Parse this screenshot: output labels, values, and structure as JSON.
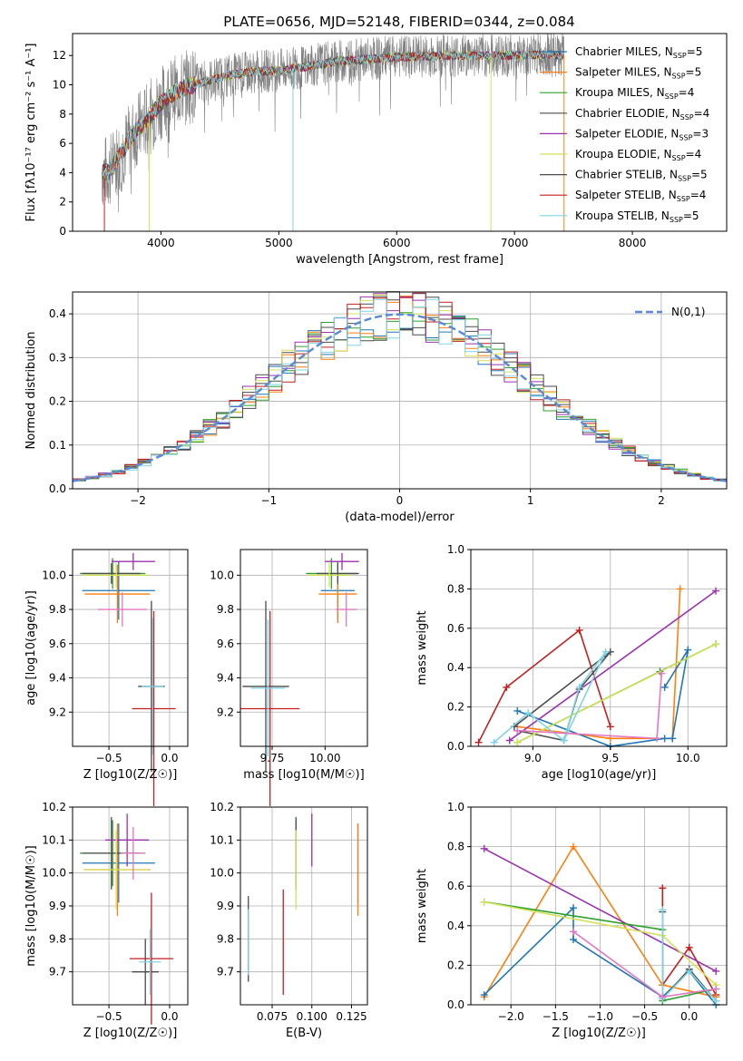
{
  "colors": {
    "chabrier_miles": "#1f77b4",
    "salpeter_miles": "#ff7f0e",
    "kroupa_miles": "#2ca02c",
    "chabrier_elodie": "#4d4d4d",
    "salpeter_elodie": "#9b30b0",
    "kroupa_elodie": "#d4e157",
    "chabrier_stelib": "#4a4a4a",
    "salpeter_stelib": "#c41e1e",
    "kroupa_stelib": "#7ed4e6",
    "normal": "#5b8bd6",
    "data": "#808080"
  },
  "chart_data": [
    {
      "id": "spectrum",
      "type": "line",
      "title": "PLATE=0656, MJD=52148, FIBERID=0344, z=0.084",
      "xlabel": "wavelength [Angstrom, rest frame]",
      "ylabel": "Flux [fλ10⁻¹⁷ erg cm⁻² s⁻¹ A⁻¹]",
      "xlim": [
        3250,
        8800
      ],
      "ylim": [
        0,
        13.5
      ],
      "xticks": [
        4000,
        5000,
        6000,
        7000,
        8000
      ],
      "yticks": [
        0,
        2,
        4,
        6,
        8,
        10,
        12
      ],
      "continuum": {
        "x": [
          3500,
          3560,
          3700,
          3800,
          3900,
          4000,
          4100,
          4200,
          4400,
          4600,
          4800,
          5000,
          5200,
          5500,
          6000,
          6500,
          7000,
          7300,
          7400
        ],
        "y": [
          4.0,
          4.1,
          5.8,
          7.0,
          7.7,
          8.8,
          9.4,
          9.8,
          10.3,
          10.7,
          10.9,
          11.0,
          11.2,
          11.6,
          11.9,
          12.0,
          12.0,
          12.1,
          12.0
        ]
      },
      "legend_position": "upper right",
      "series": [
        {
          "name": "Chabrier MILES",
          "nssp": "5",
          "color": "#1f77b4"
        },
        {
          "name": "Salpeter MILES",
          "nssp": "5",
          "color": "#ff7f0e"
        },
        {
          "name": "Kroupa MILES",
          "nssp": "4",
          "color": "#2ca02c"
        },
        {
          "name": "Chabrier ELODIE",
          "nssp": "4",
          "color": "#4d4d4d"
        },
        {
          "name": "Salpeter ELODIE",
          "nssp": "3",
          "color": "#9b30b0"
        },
        {
          "name": "Kroupa ELODIE",
          "nssp": "4",
          "color": "#d4e157"
        },
        {
          "name": "Chabrier STELIB",
          "nssp": "5",
          "color": "#4a4a4a"
        },
        {
          "name": "Salpeter STELIB",
          "nssp": "4",
          "color": "#c41e1e"
        },
        {
          "name": "Kroupa STELIB",
          "nssp": "5",
          "color": "#7ed4e6"
        }
      ]
    },
    {
      "id": "residuals",
      "type": "histogram",
      "xlabel": "(data-model)/error",
      "ylabel": "Normed distribution",
      "xlim": [
        -2.5,
        2.5
      ],
      "ylim": [
        0,
        0.45
      ],
      "xticks": [
        -2,
        -1,
        0,
        1,
        2
      ],
      "yticks": [
        0.0,
        0.1,
        0.2,
        0.3,
        0.4
      ],
      "grid": true,
      "bin_width": 0.1,
      "legend": "N(0,1)",
      "legend_position": "upper right"
    },
    {
      "id": "z_age",
      "type": "errorbar",
      "xlabel": "Z [log10(Z/Z☉)]",
      "ylabel": "age  [log10(age/yr)]",
      "xlim": [
        -0.8,
        0.15
      ],
      "ylim": [
        9.0,
        10.15
      ],
      "xticks": [
        -0.5,
        0.0
      ],
      "yticks": [
        9.2,
        9.4,
        9.6,
        9.8,
        10.0
      ],
      "grid": true,
      "points": [
        {
          "x": -0.42,
          "y": 9.91,
          "xerr": 0.3,
          "yerr": 0.17,
          "color": "#1f77b4"
        },
        {
          "x": -0.43,
          "y": 9.89,
          "xerr": 0.27,
          "yerr": 0.17,
          "color": "#ff7f0e"
        },
        {
          "x": -0.47,
          "y": 10.01,
          "xerr": 0.27,
          "yerr": 0.09,
          "color": "#2ca02c"
        },
        {
          "x": -0.48,
          "y": 10.01,
          "xerr": 0.24,
          "yerr": 0.06,
          "color": "#4d4d4d"
        },
        {
          "x": -0.3,
          "y": 10.08,
          "xerr": 0.18,
          "yerr": 0.05,
          "color": "#9b30b0"
        },
        {
          "x": -0.44,
          "y": 10.0,
          "xerr": 0.27,
          "yerr": 0.07,
          "color": "#d4e157"
        },
        {
          "x": -0.15,
          "y": 9.35,
          "xerr": 0.11,
          "yerr": 0.5,
          "color": "#4a4a4a"
        },
        {
          "x": -0.13,
          "y": 9.22,
          "xerr": 0.18,
          "yerr": 0.57,
          "color": "#c41e1e"
        },
        {
          "x": -0.14,
          "y": 9.35,
          "xerr": 0.09,
          "yerr": 0.4,
          "color": "#7ed4e6"
        },
        {
          "x": -0.39,
          "y": 9.8,
          "xerr": 0.2,
          "yerr": 0.1,
          "color": "#e377c2"
        }
      ]
    },
    {
      "id": "mass_age",
      "type": "errorbar",
      "xlabel": "mass [log10(M/M☉)]",
      "ylabel": "",
      "xlim": [
        9.6,
        10.2
      ],
      "ylim": [
        9.0,
        10.15
      ],
      "xticks": [
        9.75,
        10.0
      ],
      "yticks": [
        9.2,
        9.4,
        9.6,
        9.8,
        10.0
      ],
      "grid": true,
      "points": [
        {
          "x": 10.06,
          "y": 9.91,
          "xerr": 0.08,
          "yerr": 0.17,
          "color": "#1f77b4"
        },
        {
          "x": 10.06,
          "y": 9.89,
          "xerr": 0.09,
          "yerr": 0.17,
          "color": "#ff7f0e"
        },
        {
          "x": 10.03,
          "y": 10.01,
          "xerr": 0.12,
          "yerr": 0.09,
          "color": "#2ca02c"
        },
        {
          "x": 10.06,
          "y": 10.01,
          "xerr": 0.1,
          "yerr": 0.06,
          "color": "#4d4d4d"
        },
        {
          "x": 10.08,
          "y": 10.08,
          "xerr": 0.08,
          "yerr": 0.05,
          "color": "#9b30b0"
        },
        {
          "x": 10.02,
          "y": 10.0,
          "xerr": 0.1,
          "yerr": 0.07,
          "color": "#d4e157"
        },
        {
          "x": 9.72,
          "y": 9.35,
          "xerr": 0.11,
          "yerr": 0.5,
          "color": "#4a4a4a"
        },
        {
          "x": 9.74,
          "y": 9.22,
          "xerr": 0.14,
          "yerr": 0.57,
          "color": "#c41e1e"
        },
        {
          "x": 9.73,
          "y": 9.34,
          "xerr": 0.08,
          "yerr": 0.4,
          "color": "#7ed4e6"
        },
        {
          "x": 10.1,
          "y": 9.8,
          "xerr": 0.05,
          "yerr": 0.1,
          "color": "#e377c2"
        }
      ]
    },
    {
      "id": "age_weight",
      "type": "line",
      "xlabel": "age  [log10(age/yr)]",
      "ylabel": "mass weight",
      "xlim": [
        8.6,
        10.25
      ],
      "ylim": [
        0,
        1.0
      ],
      "xticks": [
        9.0,
        9.5,
        10.0
      ],
      "yticks": [
        0.0,
        0.2,
        0.4,
        0.6,
        0.8,
        1.0
      ],
      "grid": true,
      "series": [
        {
          "color": "#c41e1e",
          "x": [
            8.65,
            8.83,
            9.3,
            9.5
          ],
          "y": [
            0.02,
            0.3,
            0.59,
            0.1
          ]
        },
        {
          "color": "#ff7f0e",
          "x": [
            8.9,
            9.5,
            9.9,
            9.95
          ],
          "y": [
            0.1,
            0.04,
            0.04,
            0.8
          ]
        },
        {
          "color": "#1f77b4",
          "x": [
            8.9,
            9.5,
            9.85,
            9.9,
            10.0,
            9.85
          ],
          "y": [
            0.18,
            0.0,
            0.04,
            0.04,
            0.49,
            0.3
          ]
        },
        {
          "color": "#9b30b0",
          "x": [
            8.85,
            10.18
          ],
          "y": [
            0.03,
            0.79
          ]
        },
        {
          "color": "#4d4d4d",
          "x": [
            8.88,
            9.5,
            9.3,
            9.2,
            8.9
          ],
          "y": [
            0.1,
            0.48,
            0.29,
            0.03,
            0.08
          ]
        },
        {
          "color": "#2ca02c",
          "x": [
            8.9,
            9.82,
            10.18
          ],
          "y": [
            0.02,
            0.38,
            0.52
          ]
        },
        {
          "color": "#d4e157",
          "x": [
            8.9,
            10.18
          ],
          "y": [
            0.02,
            0.52
          ]
        },
        {
          "color": "#7ed4e6",
          "x": [
            8.75,
            8.97,
            9.2,
            9.47,
            9.3,
            9.2
          ],
          "y": [
            0.02,
            0.17,
            0.03,
            0.48,
            0.3,
            0.03
          ]
        },
        {
          "color": "#e377c2",
          "x": [
            8.9,
            9.8,
            9.83
          ],
          "y": [
            0.08,
            0.04,
            0.37
          ]
        }
      ]
    },
    {
      "id": "z_mass",
      "type": "errorbar",
      "xlabel": "Z [log10(Z/Z☉)]",
      "ylabel": "mass [log10(M/M☉)]",
      "xlim": [
        -0.8,
        0.15
      ],
      "ylim": [
        9.6,
        10.2
      ],
      "xticks": [
        -0.5,
        0.0
      ],
      "yticks": [
        9.7,
        9.8,
        9.9,
        10.0,
        10.1,
        10.2
      ],
      "grid": true,
      "points": [
        {
          "x": -0.42,
          "y": 10.03,
          "xerr": 0.3,
          "yerr": 0.12,
          "color": "#1f77b4"
        },
        {
          "x": -0.43,
          "y": 10.01,
          "xerr": 0.27,
          "yerr": 0.14,
          "color": "#ff7f0e"
        },
        {
          "x": -0.47,
          "y": 10.06,
          "xerr": 0.27,
          "yerr": 0.1,
          "color": "#2ca02c"
        },
        {
          "x": -0.48,
          "y": 10.06,
          "xerr": 0.24,
          "yerr": 0.11,
          "color": "#4d4d4d"
        },
        {
          "x": -0.35,
          "y": 10.1,
          "xerr": 0.18,
          "yerr": 0.08,
          "color": "#9b30b0"
        },
        {
          "x": -0.44,
          "y": 10.01,
          "xerr": 0.27,
          "yerr": 0.12,
          "color": "#d4e157"
        },
        {
          "x": -0.2,
          "y": 9.7,
          "xerr": 0.11,
          "yerr": 0.1,
          "color": "#4a4a4a"
        },
        {
          "x": -0.15,
          "y": 9.74,
          "xerr": 0.18,
          "yerr": 0.2,
          "color": "#c41e1e"
        },
        {
          "x": -0.16,
          "y": 9.73,
          "xerr": 0.09,
          "yerr": 0.1,
          "color": "#7ed4e6"
        },
        {
          "x": -0.3,
          "y": 10.06,
          "xerr": 0.1,
          "yerr": 0.08,
          "color": "#e377c2"
        }
      ]
    },
    {
      "id": "ebv_mass",
      "type": "errorbar",
      "xlabel": "E(B-V)",
      "ylabel": "",
      "xlim": [
        0.055,
        0.135
      ],
      "ylim": [
        9.6,
        10.2
      ],
      "xticks": [
        0.075,
        0.1,
        0.125
      ],
      "xtick_labels": [
        "0.075",
        "0.100",
        "0.125"
      ],
      "yticks": [
        9.7,
        9.8,
        9.9,
        10.0,
        10.1,
        10.2
      ],
      "grid": true,
      "points": [
        {
          "x": 0.129,
          "y": 10.03,
          "xerr": 0,
          "yerr": 0.12,
          "color": "#1f77b4"
        },
        {
          "x": 0.129,
          "y": 10.01,
          "xerr": 0,
          "yerr": 0.14,
          "color": "#ff7f0e"
        },
        {
          "x": 0.09,
          "y": 10.06,
          "xerr": 0,
          "yerr": 0.1,
          "color": "#2ca02c"
        },
        {
          "x": 0.09,
          "y": 10.06,
          "xerr": 0,
          "yerr": 0.11,
          "color": "#4d4d4d"
        },
        {
          "x": 0.1,
          "y": 10.1,
          "xerr": 0,
          "yerr": 0.08,
          "color": "#9b30b0"
        },
        {
          "x": 0.09,
          "y": 10.01,
          "xerr": 0,
          "yerr": 0.12,
          "color": "#d4e157"
        },
        {
          "x": 0.06,
          "y": 9.8,
          "xerr": 0,
          "yerr": 0.13,
          "color": "#4a4a4a"
        },
        {
          "x": 0.082,
          "y": 9.79,
          "xerr": 0,
          "yerr": 0.16,
          "color": "#c41e1e"
        },
        {
          "x": 0.06,
          "y": 9.79,
          "xerr": 0,
          "yerr": 0.1,
          "color": "#7ed4e6"
        }
      ]
    },
    {
      "id": "z_weight",
      "type": "line",
      "xlabel": "Z [log10(Z/Z☉)]",
      "ylabel": "mass weight",
      "xlim": [
        -2.45,
        0.42
      ],
      "ylim": [
        0,
        1.0
      ],
      "xticks": [
        -2.0,
        -1.5,
        -1.0,
        -0.5,
        0.0
      ],
      "yticks": [
        0.0,
        0.2,
        0.4,
        0.6,
        0.8,
        1.0
      ],
      "grid": true,
      "series": [
        {
          "color": "#c41e1e",
          "x": [
            -0.3,
            -0.3,
            0.0,
            0.3
          ],
          "y": [
            0.59,
            0.1,
            0.29,
            0.05
          ]
        },
        {
          "color": "#ff7f0e",
          "x": [
            -2.3,
            -1.3,
            -0.3,
            0.3
          ],
          "y": [
            0.04,
            0.8,
            0.1,
            0.04
          ]
        },
        {
          "color": "#1f77b4",
          "x": [
            -2.3,
            -1.3,
            -1.3,
            -0.3,
            0.0,
            0.3
          ],
          "y": [
            0.05,
            0.49,
            0.33,
            0.04,
            0.17,
            0.0
          ]
        },
        {
          "color": "#9b30b0",
          "x": [
            -2.3,
            0.3
          ],
          "y": [
            0.79,
            0.17
          ]
        },
        {
          "color": "#4d4d4d",
          "x": [
            -0.3,
            -0.3,
            0.0,
            0.3
          ],
          "y": [
            0.47,
            0.03,
            0.18,
            0.02
          ]
        },
        {
          "color": "#2ca02c",
          "x": [
            -2.3,
            -0.3,
            -0.3,
            0.3
          ],
          "y": [
            0.52,
            0.38,
            0.02,
            0.08
          ]
        },
        {
          "color": "#d4e157",
          "x": [
            -2.3,
            -0.3,
            0.3
          ],
          "y": [
            0.52,
            0.35,
            0.1
          ]
        },
        {
          "color": "#7ed4e6",
          "x": [
            -0.3,
            -0.3,
            0.0,
            0.3
          ],
          "y": [
            0.48,
            0.03,
            0.17,
            0.02
          ]
        },
        {
          "color": "#e377c2",
          "x": [
            -1.3,
            -0.3,
            0.3
          ],
          "y": [
            0.37,
            0.04,
            0.08
          ]
        }
      ]
    }
  ]
}
